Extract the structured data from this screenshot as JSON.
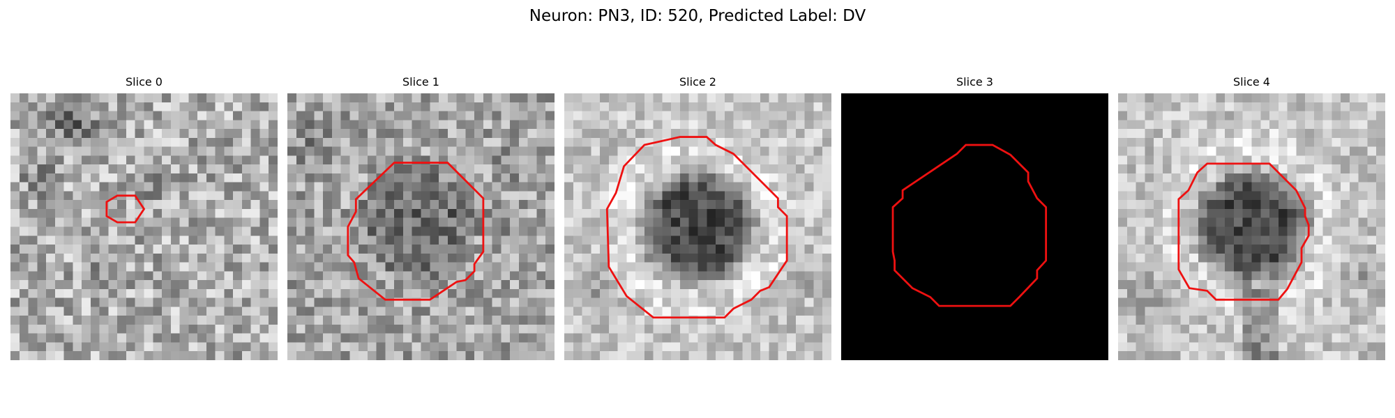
{
  "figure": {
    "title": "Neuron: PN3, ID: 520, Predicted Label: DV"
  },
  "colors": {
    "contour": "#ee1111",
    "background": "#ffffff"
  },
  "colormap": "gray",
  "grid_size": 30,
  "panels": [
    {
      "title": "Slice 0",
      "image": "noisy-grayscale-texture",
      "roi": [
        [
          12,
          11.5
        ],
        [
          14,
          11.5
        ],
        [
          15,
          13
        ],
        [
          14,
          14.5
        ],
        [
          12,
          14.5
        ],
        [
          10.8,
          13.8
        ],
        [
          10.8,
          12.2
        ]
      ]
    },
    {
      "title": "Slice 1",
      "image": "grayscale-blob-faint",
      "roi": [
        [
          12,
          7.8
        ],
        [
          18,
          7.8
        ],
        [
          22,
          11.8
        ],
        [
          22,
          17.8
        ],
        [
          21,
          19.2
        ],
        [
          21,
          20
        ],
        [
          20,
          21
        ],
        [
          19,
          21.2
        ],
        [
          16,
          23.2
        ],
        [
          11,
          23.2
        ],
        [
          8,
          20.8
        ],
        [
          7.5,
          19
        ],
        [
          6.8,
          18.2
        ],
        [
          6.8,
          15
        ],
        [
          7.7,
          13.3
        ],
        [
          7.7,
          11.9
        ]
      ]
    },
    {
      "title": "Slice 2",
      "image": "grayscale-blob-dark",
      "roi": [
        [
          9,
          5.8
        ],
        [
          13,
          4.9
        ],
        [
          16,
          4.9
        ],
        [
          17,
          5.8
        ],
        [
          19,
          6.8
        ],
        [
          24,
          11.8
        ],
        [
          24,
          12.8
        ],
        [
          25,
          13.8
        ],
        [
          25,
          18.8
        ],
        [
          23,
          21.8
        ],
        [
          22,
          22.2
        ],
        [
          21,
          23.2
        ],
        [
          19,
          24.2
        ],
        [
          18,
          25.2
        ],
        [
          10,
          25.2
        ],
        [
          7,
          22.8
        ],
        [
          5,
          19.5
        ],
        [
          4.8,
          13
        ],
        [
          5.8,
          11.2
        ],
        [
          6.7,
          8.2
        ]
      ]
    },
    {
      "title": "Slice 3",
      "image": "black-field",
      "roi": [
        [
          13,
          6.8
        ],
        [
          14,
          5.8
        ],
        [
          17,
          5.8
        ],
        [
          19,
          6.9
        ],
        [
          20,
          7.9
        ],
        [
          21,
          8.9
        ],
        [
          21,
          9.9
        ],
        [
          22,
          11.8
        ],
        [
          23,
          12.8
        ],
        [
          23,
          18.8
        ],
        [
          22,
          19.9
        ],
        [
          22,
          20.8
        ],
        [
          20,
          22.9
        ],
        [
          19,
          23.9
        ],
        [
          11,
          23.9
        ],
        [
          10,
          22.9
        ],
        [
          8,
          21.9
        ],
        [
          6,
          19.9
        ],
        [
          6,
          18.8
        ],
        [
          5.8,
          17.8
        ],
        [
          5.8,
          12.8
        ],
        [
          6.9,
          11.8
        ],
        [
          6.9,
          10.9
        ]
      ]
    },
    {
      "title": "Slice 4",
      "image": "grayscale-blob-dark",
      "roi": [
        [
          10,
          7.9
        ],
        [
          17,
          7.9
        ],
        [
          20,
          10.9
        ],
        [
          21,
          12.9
        ],
        [
          21,
          13.8
        ],
        [
          21.4,
          14.8
        ],
        [
          21.4,
          16
        ],
        [
          20.6,
          17.4
        ],
        [
          20.6,
          19
        ],
        [
          19,
          22
        ],
        [
          18,
          23.2
        ],
        [
          11,
          23.2
        ],
        [
          10,
          22.2
        ],
        [
          8,
          21.9
        ],
        [
          6.8,
          19.8
        ],
        [
          6.8,
          11.9
        ],
        [
          7.9,
          10.9
        ],
        [
          8.9,
          8.9
        ]
      ]
    }
  ]
}
